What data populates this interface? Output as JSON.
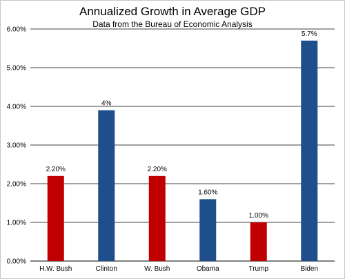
{
  "chart_data": {
    "type": "bar",
    "title": "Annualized Growth in Average GDP",
    "subtitle": "Data from the Bureau of Economic Analysis",
    "categories": [
      "H.W. Bush",
      "Clinton",
      "W. Bush",
      "Obama",
      "Trump",
      "Biden"
    ],
    "values": [
      2.2,
      3.9,
      2.2,
      1.6,
      1.0,
      5.7
    ],
    "data_labels": [
      "2.20%",
      "4%",
      "2.20%",
      "1.60%",
      "1.00%",
      "5.7%"
    ],
    "bar_colors": [
      "#c00000",
      "#1f4e8c",
      "#c00000",
      "#1f4e8c",
      "#c00000",
      "#1f4e8c"
    ],
    "ylim": [
      0,
      6
    ],
    "yticks": [
      0,
      1,
      2,
      3,
      4,
      5,
      6
    ],
    "ytick_labels": [
      "0.00%",
      "1.00%",
      "2.00%",
      "3.00%",
      "4.00%",
      "5.00%",
      "6.00%"
    ],
    "xlabel": "",
    "ylabel": "",
    "grid": true,
    "legend": "none"
  }
}
